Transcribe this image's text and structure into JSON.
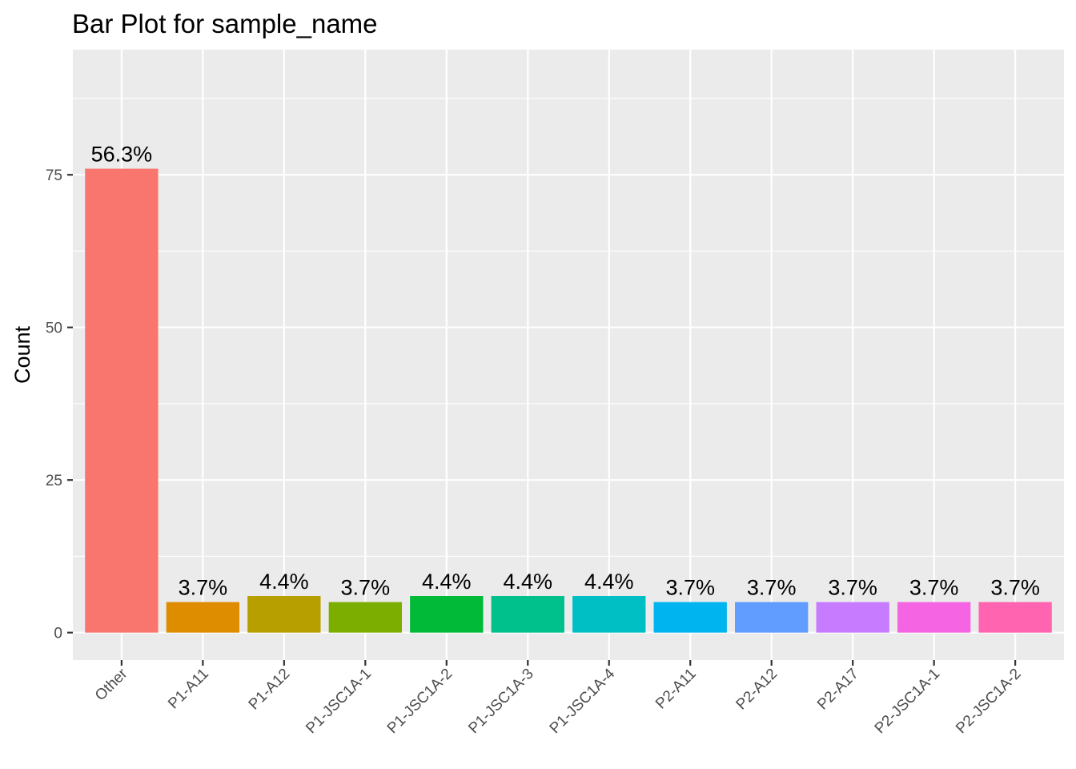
{
  "chart_data": {
    "type": "bar",
    "title": "Bar Plot for sample_name",
    "xlabel": "",
    "ylabel": "Count",
    "categories": [
      "Other",
      "P1-A11",
      "P1-A12",
      "P1-JSC1A-1",
      "P1-JSC1A-2",
      "P1-JSC1A-3",
      "P1-JSC1A-4",
      "P2-A11",
      "P2-A12",
      "P2-A17",
      "P2-JSC1A-1",
      "P2-JSC1A-2"
    ],
    "values": [
      76,
      5,
      6,
      5,
      6,
      6,
      6,
      5,
      5,
      5,
      5,
      5
    ],
    "labels": [
      "56.3%",
      "3.7%",
      "4.4%",
      "3.7%",
      "4.4%",
      "4.4%",
      "4.4%",
      "3.7%",
      "3.7%",
      "3.7%",
      "3.7%",
      "3.7%"
    ],
    "colors": [
      "#F8766D",
      "#DE8C00",
      "#B79F00",
      "#7CAE00",
      "#00BA38",
      "#00C08B",
      "#00BFC4",
      "#00B4F0",
      "#619CFF",
      "#C77CFF",
      "#F564E3",
      "#FF64B0"
    ],
    "yticks": [
      0,
      25,
      50,
      75
    ],
    "ylim": [
      -4.5,
      95.5
    ],
    "grid": true,
    "legend": "none",
    "panel_background": "#EBEBEB",
    "grid_color": "#FFFFFF"
  }
}
